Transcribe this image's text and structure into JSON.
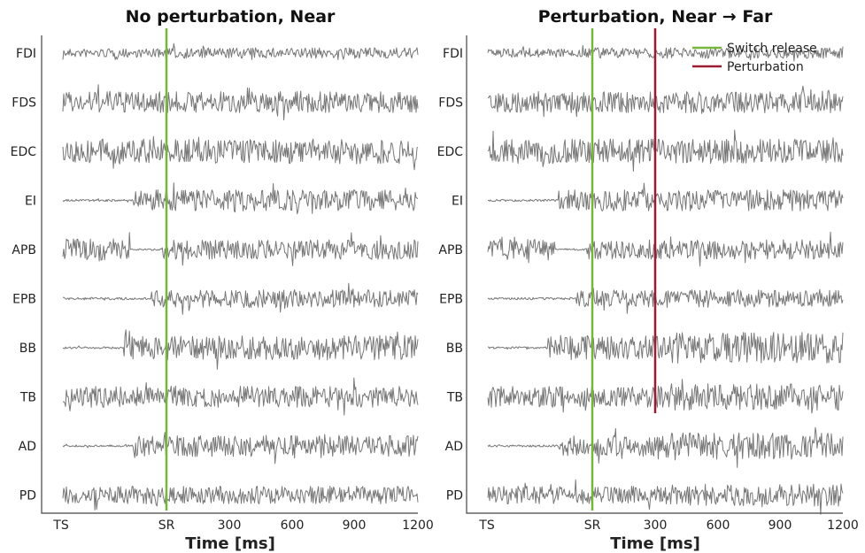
{
  "chart_data": [
    {
      "type": "line",
      "title": "No perturbation, Near",
      "xlabel": "Time [ms]",
      "ylabel": "",
      "x_tick_labels": [
        "TS",
        "SR",
        "300",
        "600",
        "900",
        "1200"
      ],
      "channels": [
        "FDI",
        "FDS",
        "EDC",
        "EI",
        "APB",
        "EPB",
        "BB",
        "TB",
        "AD",
        "PD"
      ],
      "events": [
        {
          "name": "Switch release",
          "x": "SR",
          "color": "#76b63a"
        }
      ],
      "legend": null,
      "trace_color": "#777777"
    },
    {
      "type": "line",
      "title": "Perturbation, Near → Far",
      "xlabel": "Time [ms]",
      "ylabel": "",
      "x_tick_labels": [
        "TS",
        "SR",
        "300",
        "600",
        "900",
        "1200"
      ],
      "channels": [
        "FDI",
        "FDS",
        "EDC",
        "EI",
        "APB",
        "EPB",
        "BB",
        "TB",
        "AD",
        "PD"
      ],
      "events": [
        {
          "name": "Switch release",
          "x": "SR",
          "color": "#76b63a"
        },
        {
          "name": "Perturbation",
          "x": 300,
          "color": "#9b1c31"
        }
      ],
      "legend": {
        "placement": "top-right",
        "entries": [
          {
            "label": "Switch release",
            "color": "#76b63a"
          },
          {
            "label": "Perturbation",
            "color": "#9b1c31"
          }
        ]
      },
      "trace_color": "#777777"
    }
  ]
}
